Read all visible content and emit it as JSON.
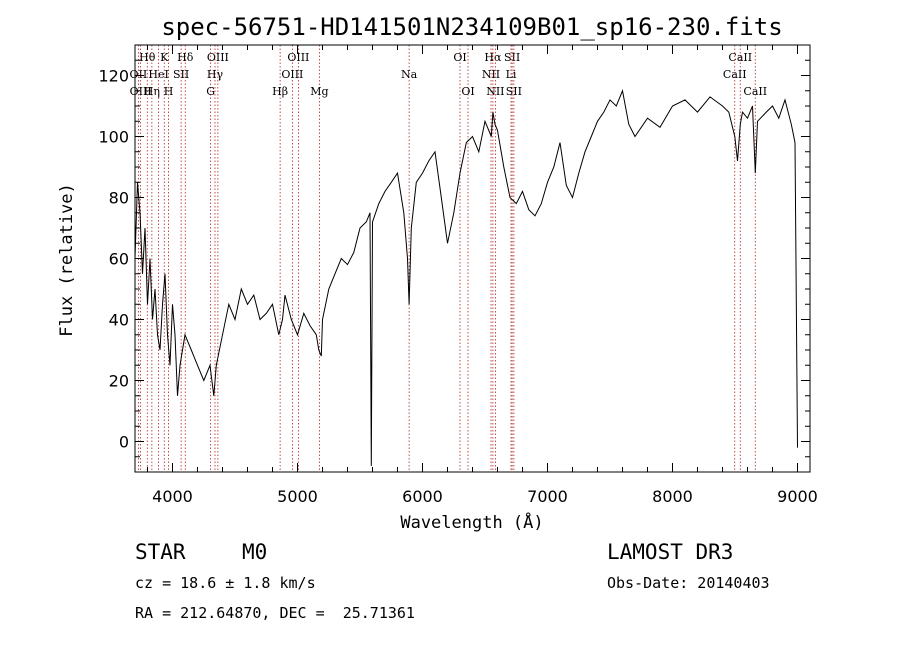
{
  "chart_data": {
    "type": "line",
    "title": "spec-56751-HD141501N234109B01_sp16-230.fits",
    "xlabel": "Wavelength (Å)",
    "ylabel": "Flux (relative)",
    "xlim": [
      3700,
      9100
    ],
    "ylim": [
      -10,
      130
    ],
    "xticks": [
      "4000",
      "5000",
      "6000",
      "7000",
      "8000",
      "9000"
    ],
    "yticks": [
      "0",
      "20",
      "40",
      "60",
      "80",
      "100",
      "120"
    ],
    "grid": false,
    "series": [
      {
        "x": [
          3700,
          3720,
          3740,
          3760,
          3780,
          3800,
          3820,
          3840,
          3860,
          3880,
          3900,
          3920,
          3940,
          3960,
          3980,
          4000,
          4020,
          4040,
          4060,
          4080,
          4100,
          4150,
          4200,
          4250,
          4300,
          4330,
          4350,
          4400,
          4450,
          4500,
          4550,
          4600,
          4650,
          4700,
          4750,
          4800,
          4850,
          4880,
          4900,
          4950,
          5000,
          5050,
          5100,
          5150,
          5170,
          5190,
          5200,
          5250,
          5300,
          5350,
          5400,
          5450,
          5500,
          5550,
          5580,
          5590,
          5600,
          5650,
          5700,
          5750,
          5800,
          5850,
          5880,
          5893,
          5910,
          5950,
          6000,
          6050,
          6100,
          6150,
          6200,
          6250,
          6300,
          6350,
          6400,
          6450,
          6500,
          6550,
          6563,
          6580,
          6600,
          6650,
          6700,
          6750,
          6800,
          6850,
          6900,
          6950,
          7000,
          7050,
          7100,
          7150,
          7200,
          7250,
          7300,
          7350,
          7400,
          7450,
          7500,
          7550,
          7600,
          7650,
          7700,
          7800,
          7900,
          8000,
          8100,
          8200,
          8300,
          8400,
          8450,
          8498,
          8520,
          8542,
          8560,
          8600,
          8640,
          8662,
          8680,
          8750,
          8800,
          8850,
          8900,
          8950,
          8980,
          9000
        ],
        "y": [
          60,
          85,
          75,
          55,
          70,
          45,
          60,
          40,
          50,
          35,
          30,
          45,
          55,
          35,
          25,
          45,
          35,
          15,
          25,
          30,
          35,
          30,
          25,
          20,
          25,
          15,
          25,
          35,
          45,
          40,
          50,
          45,
          48,
          40,
          42,
          45,
          35,
          40,
          48,
          40,
          35,
          42,
          38,
          35,
          30,
          28,
          40,
          50,
          55,
          60,
          58,
          62,
          70,
          72,
          75,
          -8,
          72,
          78,
          82,
          85,
          88,
          75,
          60,
          45,
          70,
          85,
          88,
          92,
          95,
          80,
          65,
          75,
          88,
          98,
          100,
          95,
          105,
          100,
          108,
          104,
          102,
          90,
          80,
          78,
          82,
          76,
          74,
          78,
          85,
          90,
          98,
          84,
          80,
          88,
          95,
          100,
          105,
          108,
          112,
          110,
          115,
          104,
          100,
          106,
          103,
          110,
          112,
          108,
          113,
          110,
          108,
          100,
          92,
          104,
          108,
          106,
          110,
          88,
          105,
          108,
          110,
          106,
          112,
          104,
          98,
          -2
        ]
      }
    ],
    "line_marks": [
      {
        "label": "Hθ",
        "x": 3798,
        "row": 0
      },
      {
        "label": "OII",
        "x": 3727,
        "row": 1
      },
      {
        "label": "HeI",
        "x": 3889,
        "row": 1
      },
      {
        "label": "OIII",
        "x": 3745,
        "row": 2
      },
      {
        "label": "Hη",
        "x": 3835,
        "row": 2
      },
      {
        "label": "K",
        "x": 3934,
        "row": 0
      },
      {
        "label": "SII",
        "x": 4069,
        "row": 1
      },
      {
        "label": "H",
        "x": 3968,
        "row": 2
      },
      {
        "label": "Hδ",
        "x": 4102,
        "row": 0
      },
      {
        "label": "OIII",
        "x": 4363,
        "row": 0
      },
      {
        "label": "Hγ",
        "x": 4340,
        "row": 1
      },
      {
        "label": "G",
        "x": 4305,
        "row": 2
      },
      {
        "label": "Hβ",
        "x": 4861,
        "row": 2
      },
      {
        "label": "OIII",
        "x": 5007,
        "row": 0
      },
      {
        "label": "OIII",
        "x": 4959,
        "row": 1
      },
      {
        "label": "Mg",
        "x": 5175,
        "row": 2
      },
      {
        "label": "Na",
        "x": 5893,
        "row": 1
      },
      {
        "label": "OI",
        "x": 6300,
        "row": 0
      },
      {
        "label": "OI",
        "x": 6364,
        "row": 2
      },
      {
        "label": "Hα",
        "x": 6563,
        "row": 0
      },
      {
        "label": "NII",
        "x": 6548,
        "row": 1
      },
      {
        "label": "NII",
        "x": 6583,
        "row": 2
      },
      {
        "label": "SII",
        "x": 6717,
        "row": 0
      },
      {
        "label": "Li",
        "x": 6708,
        "row": 1
      },
      {
        "label": "SII",
        "x": 6731,
        "row": 2
      },
      {
        "label": "CaII",
        "x": 8542,
        "row": 0
      },
      {
        "label": "CaII",
        "x": 8498,
        "row": 1
      },
      {
        "label": "CaII",
        "x": 8662,
        "row": 2
      }
    ]
  },
  "info": {
    "class_label": "STAR",
    "subclass": "M0",
    "survey": "LAMOST DR3",
    "cz": "cz = 18.6 ± 1.8 km/s",
    "obs_date": "Obs-Date: 20140403",
    "coords": "RA = 212.64870, DEC =  25.71361"
  }
}
